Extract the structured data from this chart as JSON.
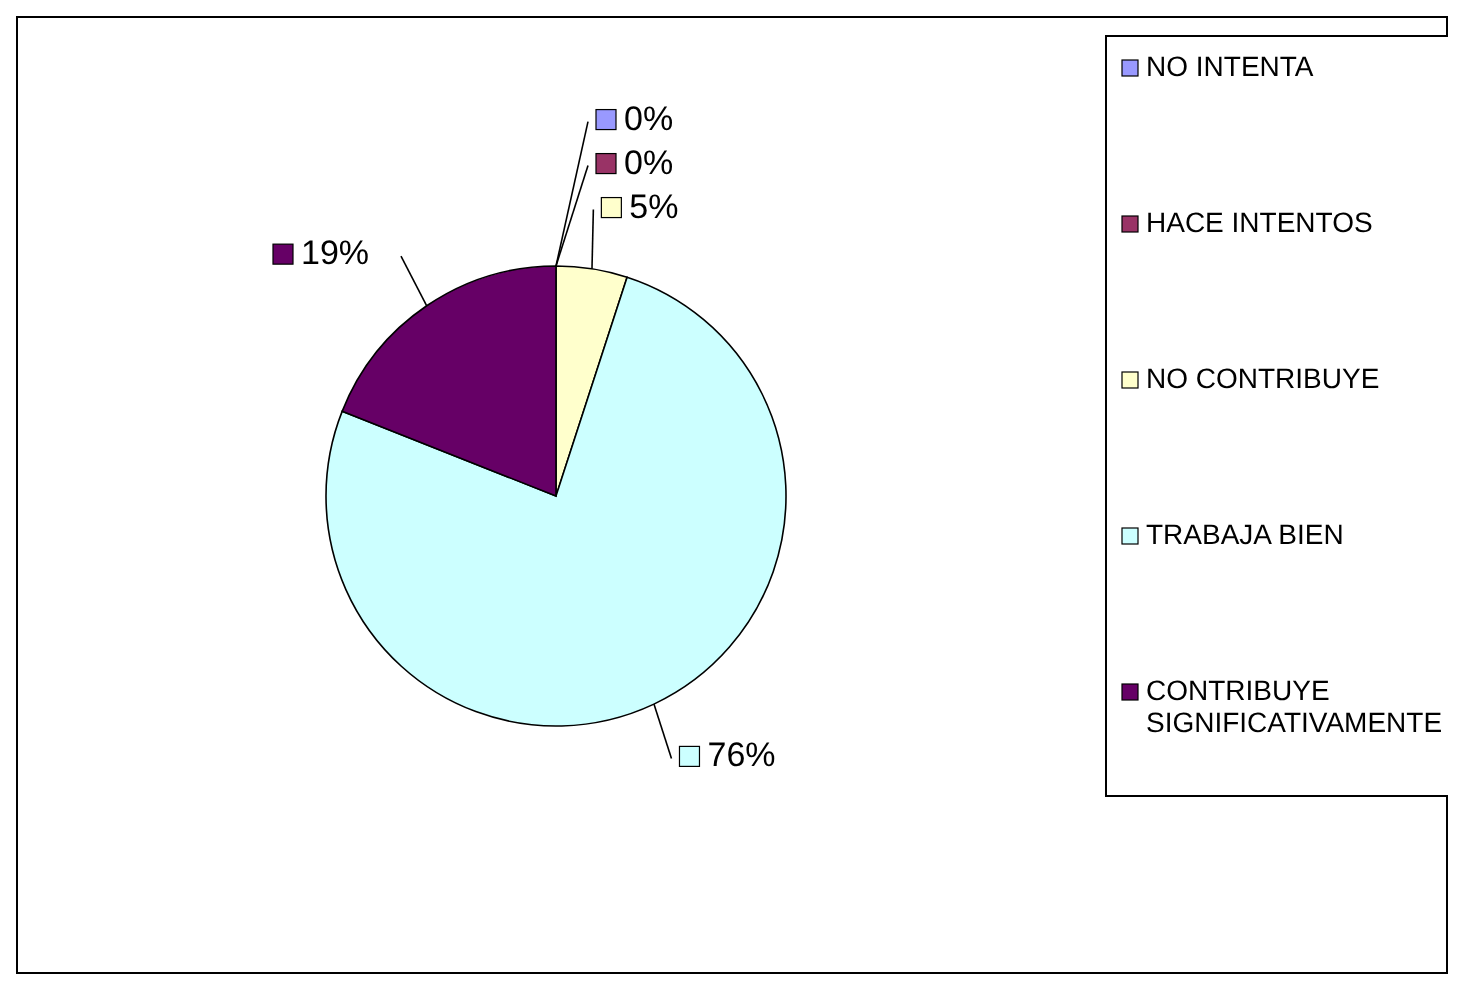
{
  "chart_data": {
    "type": "pie",
    "categories": [
      "NO INTENTA",
      "HACE INTENTOS",
      "NO CONTRIBUYE",
      "TRABAJA BIEN",
      "CONTRIBUYE SIGNIFICATIVAMENTE"
    ],
    "values": [
      0,
      0,
      5,
      76,
      19
    ],
    "value_labels": [
      "0%",
      "0%",
      "5%",
      "76%",
      "19%"
    ],
    "colors": [
      "#9999ff",
      "#993366",
      "#ffffcc",
      "#ccffff",
      "#660066"
    ],
    "legend": "right"
  }
}
